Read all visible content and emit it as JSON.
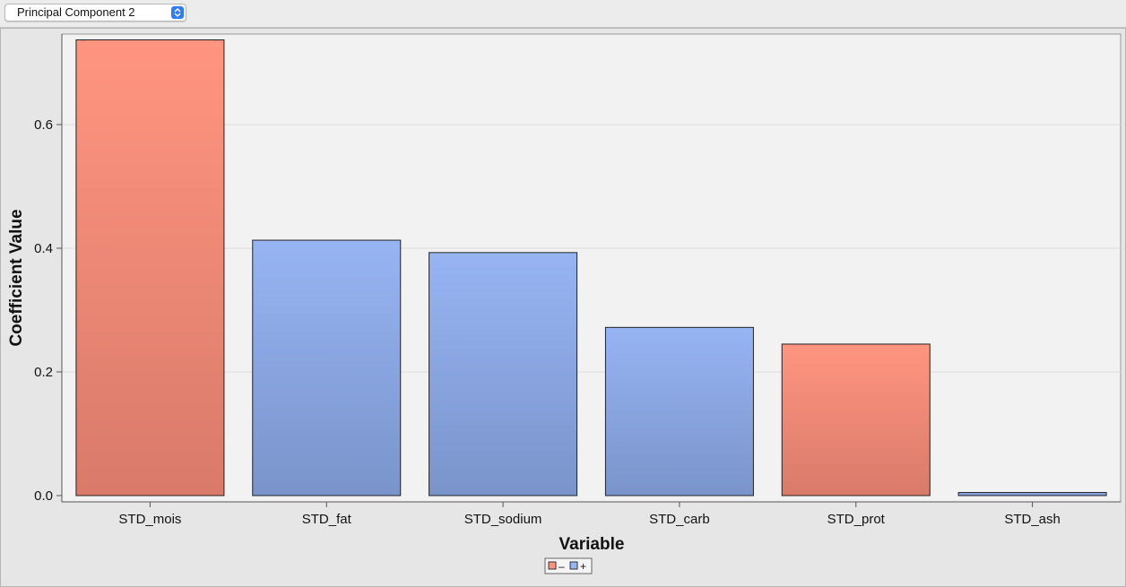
{
  "selector": {
    "selected": "Principal Component 2"
  },
  "colors": {
    "negative_top": "#ff9580",
    "negative_bottom": "#d97a6a",
    "positive_top": "#97b4f3",
    "positive_bottom": "#7a94cb",
    "plot_background": "#f2f2f2"
  },
  "chart_data": {
    "type": "bar",
    "categories": [
      "STD_mois",
      "STD_fat",
      "STD_sodium",
      "STD_carb",
      "STD_prot",
      "STD_ash"
    ],
    "values": [
      0.737,
      0.413,
      0.393,
      0.272,
      0.245,
      0.005
    ],
    "signs": [
      "-",
      "+",
      "+",
      "+",
      "-",
      "+"
    ],
    "xlabel": "Variable",
    "ylabel": "Coefficient Value",
    "ylim": [
      0,
      0.75
    ],
    "yticks": [
      0.0,
      0.2,
      0.4,
      0.6
    ],
    "ytick_labels": [
      "0.0",
      "0.2",
      "0.4",
      "0.6"
    ],
    "grid": true,
    "legend_placement": "bottom-center",
    "legend": [
      {
        "sign": "-",
        "label": "–"
      },
      {
        "sign": "+",
        "label": "+"
      }
    ]
  }
}
